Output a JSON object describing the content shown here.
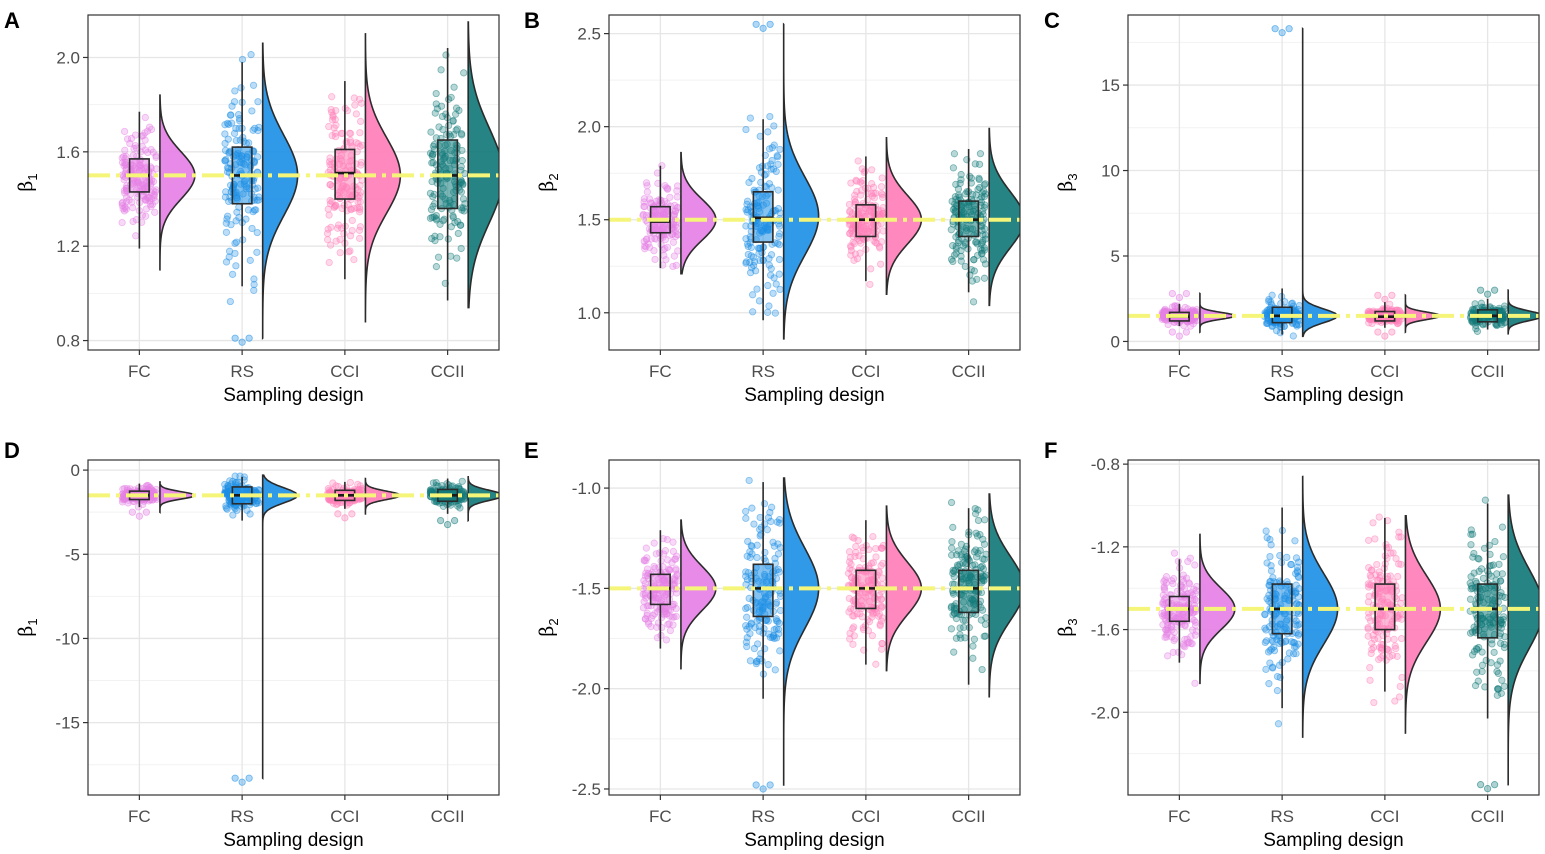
{
  "figure": {
    "colors": {
      "FC": "#e680e6",
      "RS": "#1e90e6",
      "CCI": "#ff7fb8",
      "CCII": "#137a7a",
      "true_line": "#f5f57a",
      "panel_border": "#333333",
      "grid_major": "#e6e6e6",
      "grid_minor": "#f2f2f2"
    }
  },
  "chart_data": [
    {
      "panel": "A",
      "type": "raincloud",
      "ylabel": "β",
      "ylabel_sub": "1",
      "xlabel": "Sampling design",
      "categories": [
        "FC",
        "RS",
        "CCI",
        "CCII"
      ],
      "ylim": [
        0.76,
        2.18
      ],
      "yticks": [
        0.8,
        1.2,
        1.6,
        2.0
      ],
      "ytick_labels": [
        "0.8",
        "1.2",
        "1.6",
        "2.0"
      ],
      "true_value": 1.5,
      "series": [
        {
          "name": "FC",
          "min": 1.19,
          "q1": 1.43,
          "median": 1.5,
          "q3": 1.57,
          "max": 1.77,
          "mean": 1.5,
          "sd": 0.1,
          "range": [
            1.1,
            1.84
          ]
        },
        {
          "name": "RS",
          "min": 1.03,
          "q1": 1.38,
          "median": 1.5,
          "q3": 1.62,
          "max": 1.98,
          "mean": 1.5,
          "sd": 0.17,
          "range": [
            0.81,
            2.06
          ]
        },
        {
          "name": "CCI",
          "min": 1.06,
          "q1": 1.4,
          "median": 1.51,
          "q3": 1.61,
          "max": 1.9,
          "mean": 1.5,
          "sd": 0.16,
          "range": [
            0.88,
            2.1
          ]
        },
        {
          "name": "CCII",
          "min": 0.97,
          "q1": 1.36,
          "median": 1.5,
          "q3": 1.65,
          "max": 2.04,
          "mean": 1.5,
          "sd": 0.2,
          "range": [
            0.94,
            2.15
          ]
        }
      ]
    },
    {
      "panel": "B",
      "type": "raincloud",
      "ylabel": "β",
      "ylabel_sub": "2",
      "xlabel": "Sampling design",
      "categories": [
        "FC",
        "RS",
        "CCI",
        "CCII"
      ],
      "ylim": [
        0.8,
        2.6
      ],
      "yticks": [
        1.0,
        1.5,
        2.0,
        2.5
      ],
      "ytick_labels": [
        "1.0",
        "1.5",
        "2.0",
        "2.5"
      ],
      "true_value": 1.5,
      "series": [
        {
          "name": "FC",
          "min": 1.24,
          "q1": 1.43,
          "median": 1.49,
          "q3": 1.57,
          "max": 1.79,
          "mean": 1.5,
          "sd": 0.11,
          "range": [
            1.21,
            1.86
          ]
        },
        {
          "name": "RS",
          "min": 0.96,
          "q1": 1.38,
          "median": 1.51,
          "q3": 1.65,
          "max": 2.04,
          "mean": 1.52,
          "sd": 0.21,
          "range": [
            0.86,
            2.55
          ]
        },
        {
          "name": "CCI",
          "min": 1.17,
          "q1": 1.41,
          "median": 1.5,
          "q3": 1.58,
          "max": 1.84,
          "mean": 1.5,
          "sd": 0.13,
          "range": [
            1.1,
            1.94
          ]
        },
        {
          "name": "CCII",
          "min": 1.11,
          "q1": 1.41,
          "median": 1.5,
          "q3": 1.6,
          "max": 1.88,
          "mean": 1.5,
          "sd": 0.15,
          "range": [
            1.04,
            1.99
          ]
        }
      ]
    },
    {
      "panel": "C",
      "type": "raincloud",
      "ylabel": "β",
      "ylabel_sub": "3",
      "xlabel": "Sampling design",
      "categories": [
        "FC",
        "RS",
        "CCI",
        "CCII"
      ],
      "ylim": [
        -0.5,
        19.1
      ],
      "yticks": [
        0,
        5,
        10,
        15
      ],
      "ytick_labels": [
        "0",
        "5",
        "10",
        "15"
      ],
      "true_value": 1.5,
      "series": [
        {
          "name": "FC",
          "min": 0.9,
          "q1": 1.2,
          "median": 1.45,
          "q3": 1.7,
          "max": 2.2,
          "mean": 1.5,
          "sd": 0.2,
          "range": [
            0.55,
            2.8
          ]
        },
        {
          "name": "RS",
          "min": 0.4,
          "q1": 1.1,
          "median": 1.5,
          "q3": 2.0,
          "max": 3.1,
          "mean": 1.5,
          "sd": 0.4,
          "range": [
            0.3,
            18.3
          ]
        },
        {
          "name": "CCI",
          "min": 0.8,
          "q1": 1.2,
          "median": 1.45,
          "q3": 1.75,
          "max": 2.3,
          "mean": 1.5,
          "sd": 0.22,
          "range": [
            0.55,
            2.7
          ]
        },
        {
          "name": "CCII",
          "min": 0.7,
          "q1": 1.15,
          "median": 1.5,
          "q3": 1.85,
          "max": 2.5,
          "mean": 1.5,
          "sd": 0.28,
          "range": [
            0.45,
            3.0
          ]
        }
      ]
    },
    {
      "panel": "D",
      "type": "raincloud",
      "ylabel": "β",
      "ylabel_sub": "1",
      "xlabel": "Sampling design",
      "categories": [
        "FC",
        "RS",
        "CCI",
        "CCII"
      ],
      "ylim": [
        -19.3,
        0.6
      ],
      "yticks": [
        -15,
        -10,
        -5,
        0
      ],
      "ytick_labels": [
        "-15",
        "-10",
        "-5",
        "0"
      ],
      "true_value": -1.5,
      "series": [
        {
          "name": "FC",
          "min": -2.2,
          "q1": -1.75,
          "median": -1.5,
          "q3": -1.25,
          "max": -0.8,
          "mean": -1.5,
          "sd": 0.22,
          "range": [
            -2.5,
            -0.7
          ]
        },
        {
          "name": "RS",
          "min": -3.0,
          "q1": -2.0,
          "median": -1.5,
          "q3": -1.0,
          "max": -0.4,
          "mean": -1.5,
          "sd": 0.45,
          "range": [
            -18.3,
            -0.3
          ]
        },
        {
          "name": "CCI",
          "min": -2.3,
          "q1": -1.8,
          "median": -1.5,
          "q3": -1.2,
          "max": -0.7,
          "mean": -1.5,
          "sd": 0.25,
          "range": [
            -2.6,
            -0.5
          ]
        },
        {
          "name": "CCII",
          "min": -2.6,
          "q1": -1.85,
          "median": -1.5,
          "q3": -1.15,
          "max": -0.5,
          "mean": -1.5,
          "sd": 0.3,
          "range": [
            -3.0,
            -0.4
          ]
        }
      ]
    },
    {
      "panel": "E",
      "type": "raincloud",
      "ylabel": "β",
      "ylabel_sub": "2",
      "xlabel": "Sampling design",
      "categories": [
        "FC",
        "RS",
        "CCI",
        "CCII"
      ],
      "ylim": [
        -2.53,
        -0.86
      ],
      "yticks": [
        -2.5,
        -2.0,
        -1.5,
        -1.0
      ],
      "ytick_labels": [
        "-2.5",
        "-2.0",
        "-1.5",
        "-1.0"
      ],
      "true_value": -1.5,
      "series": [
        {
          "name": "FC",
          "min": -1.8,
          "q1": -1.58,
          "median": -1.5,
          "q3": -1.43,
          "max": -1.21,
          "mean": -1.5,
          "sd": 0.11,
          "range": [
            -1.9,
            -1.16
          ]
        },
        {
          "name": "RS",
          "min": -2.05,
          "q1": -1.64,
          "median": -1.5,
          "q3": -1.38,
          "max": -0.97,
          "mean": -1.5,
          "sd": 0.2,
          "range": [
            -2.48,
            -0.95
          ]
        },
        {
          "name": "CCI",
          "min": -1.88,
          "q1": -1.6,
          "median": -1.5,
          "q3": -1.41,
          "max": -1.16,
          "mean": -1.5,
          "sd": 0.13,
          "range": [
            -1.91,
            -1.09
          ]
        },
        {
          "name": "CCII",
          "min": -1.98,
          "q1": -1.62,
          "median": -1.5,
          "q3": -1.41,
          "max": -1.1,
          "mean": -1.5,
          "sd": 0.16,
          "range": [
            -2.04,
            -1.03
          ]
        }
      ]
    },
    {
      "panel": "F",
      "type": "raincloud",
      "ylabel": "β",
      "ylabel_sub": "3",
      "xlabel": "Sampling design",
      "categories": [
        "FC",
        "RS",
        "CCI",
        "CCII"
      ],
      "ylim": [
        -2.4,
        -0.78
      ],
      "yticks": [
        -2.0,
        -1.6,
        -1.2,
        -0.8
      ],
      "ytick_labels": [
        "-2.0",
        "-1.6",
        "-1.2",
        "-0.8"
      ],
      "true_value": -1.5,
      "series": [
        {
          "name": "FC",
          "min": -1.76,
          "q1": -1.56,
          "median": -1.5,
          "q3": -1.44,
          "max": -1.26,
          "mean": -1.5,
          "sd": 0.1,
          "range": [
            -1.86,
            -1.14
          ]
        },
        {
          "name": "RS",
          "min": -1.98,
          "q1": -1.62,
          "median": -1.5,
          "q3": -1.38,
          "max": -1.01,
          "mean": -1.5,
          "sd": 0.17,
          "range": [
            -2.12,
            -0.86
          ]
        },
        {
          "name": "CCI",
          "min": -1.9,
          "q1": -1.6,
          "median": -1.5,
          "q3": -1.38,
          "max": -1.06,
          "mean": -1.5,
          "sd": 0.16,
          "range": [
            -2.1,
            -1.05
          ]
        },
        {
          "name": "CCII",
          "min": -2.03,
          "q1": -1.64,
          "median": -1.5,
          "q3": -1.38,
          "max": -0.99,
          "mean": -1.5,
          "sd": 0.19,
          "range": [
            -2.35,
            -0.95
          ]
        }
      ]
    }
  ]
}
